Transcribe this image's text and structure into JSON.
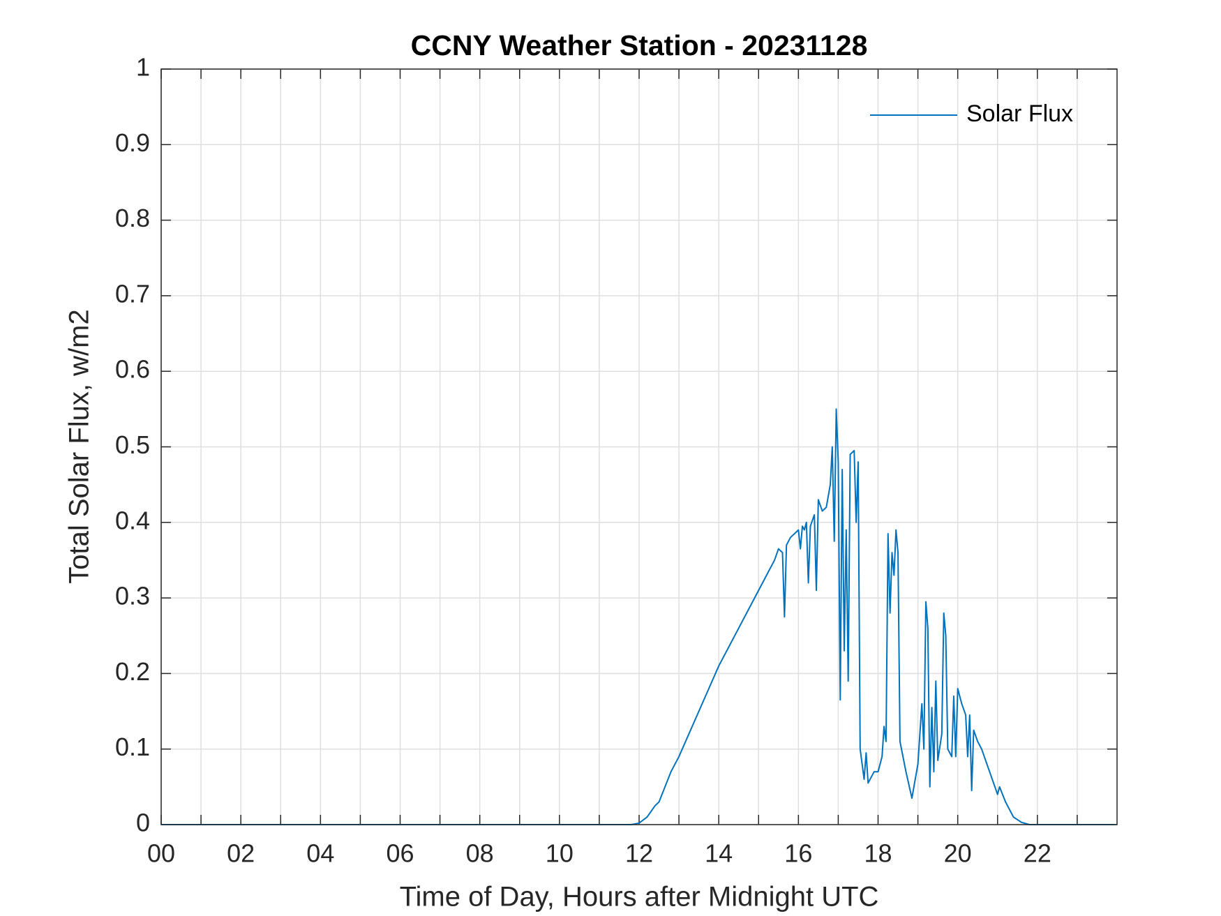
{
  "chart_data": {
    "type": "line",
    "title": "CCNY Weather Station - 20231128",
    "x_label": "Time of Day, Hours after Midnight UTC",
    "y_label": "Total Solar Flux, w/m2",
    "xlim": [
      0,
      24
    ],
    "ylim": [
      0,
      1
    ],
    "xticks": [
      {
        "value": 0,
        "label": "00"
      },
      {
        "value": 2,
        "label": "02"
      },
      {
        "value": 4,
        "label": "04"
      },
      {
        "value": 6,
        "label": "06"
      },
      {
        "value": 8,
        "label": "08"
      },
      10,
      12,
      14,
      16,
      18,
      20,
      22
    ],
    "x_minor_ticks": [
      1,
      3,
      5,
      7,
      9,
      11,
      13,
      15,
      17,
      19,
      21,
      23
    ],
    "yticks": [
      0,
      0.1,
      0.2,
      0.3,
      0.4,
      0.5,
      0.6,
      0.7,
      0.8,
      0.9,
      1
    ],
    "grid": true,
    "legend_position": "upper right",
    "x": [
      0,
      11.8,
      12.0,
      12.2,
      12.4,
      12.5,
      12.8,
      13.0,
      13.5,
      14.0,
      14.5,
      15.0,
      15.4,
      15.5,
      15.6,
      15.65,
      15.7,
      15.8,
      16.0,
      16.05,
      16.1,
      16.15,
      16.2,
      16.25,
      16.3,
      16.4,
      16.45,
      16.5,
      16.6,
      16.7,
      16.8,
      16.85,
      16.9,
      16.95,
      17.0,
      17.05,
      17.1,
      17.15,
      17.2,
      17.25,
      17.3,
      17.4,
      17.45,
      17.5,
      17.55,
      17.65,
      17.7,
      17.75,
      17.9,
      18.0,
      18.1,
      18.15,
      18.2,
      18.25,
      18.3,
      18.35,
      18.4,
      18.45,
      18.5,
      18.55,
      18.7,
      18.85,
      19.0,
      19.1,
      19.15,
      19.2,
      19.25,
      19.3,
      19.35,
      19.4,
      19.45,
      19.5,
      19.6,
      19.65,
      19.7,
      19.75,
      19.85,
      19.9,
      19.95,
      20.0,
      20.1,
      20.2,
      20.25,
      20.3,
      20.35,
      20.4,
      20.5,
      20.6,
      20.8,
      21.0,
      21.05,
      21.2,
      21.4,
      21.6,
      21.8,
      23.95
    ],
    "series": [
      {
        "name": "Solar Flux",
        "color": "#0072bd",
        "values": [
          0,
          0,
          0.002,
          0.01,
          0.025,
          0.03,
          0.07,
          0.09,
          0.15,
          0.21,
          0.26,
          0.31,
          0.35,
          0.365,
          0.36,
          0.275,
          0.37,
          0.38,
          0.39,
          0.365,
          0.395,
          0.39,
          0.4,
          0.32,
          0.395,
          0.41,
          0.31,
          0.43,
          0.415,
          0.42,
          0.45,
          0.5,
          0.375,
          0.55,
          0.48,
          0.165,
          0.47,
          0.23,
          0.39,
          0.19,
          0.49,
          0.495,
          0.4,
          0.48,
          0.1,
          0.06,
          0.095,
          0.055,
          0.07,
          0.07,
          0.09,
          0.13,
          0.11,
          0.385,
          0.28,
          0.36,
          0.33,
          0.39,
          0.36,
          0.11,
          0.07,
          0.035,
          0.08,
          0.16,
          0.1,
          0.295,
          0.26,
          0.05,
          0.155,
          0.07,
          0.19,
          0.085,
          0.12,
          0.28,
          0.25,
          0.1,
          0.09,
          0.17,
          0.09,
          0.18,
          0.16,
          0.145,
          0.09,
          0.145,
          0.045,
          0.125,
          0.11,
          0.1,
          0.07,
          0.04,
          0.05,
          0.03,
          0.01,
          0.003,
          0,
          0
        ]
      }
    ]
  }
}
